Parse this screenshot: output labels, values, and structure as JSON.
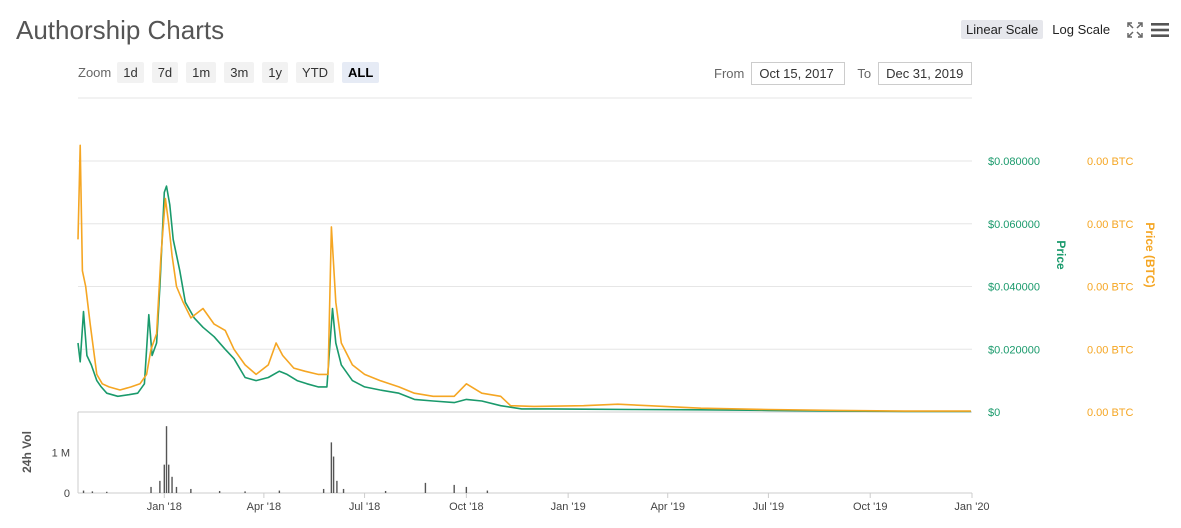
{
  "header": {
    "title": "Authorship Charts"
  },
  "scale": {
    "linear_label": "Linear Scale",
    "log_label": "Log Scale",
    "active": "linear"
  },
  "icons": {
    "fullscreen": "fullscreen-icon",
    "menu": "hamburger-menu-icon"
  },
  "zoom": {
    "label": "Zoom",
    "buttons": [
      "1d",
      "7d",
      "1m",
      "3m",
      "1y",
      "YTD",
      "ALL"
    ],
    "active": "ALL"
  },
  "range": {
    "from_label": "From",
    "from_value": "Oct 15, 2017",
    "to_label": "To",
    "to_value": "Dec 31, 2019"
  },
  "colors": {
    "price": "#1a9a6c",
    "btc": "#f5a623",
    "volume": "#555555",
    "grid": "#e6e6e6"
  },
  "chart_data": {
    "type": "line",
    "x_range": [
      "2017-10-15",
      "2019-12-31"
    ],
    "x_ticks": [
      {
        "date": "2018-01-01",
        "label": "Jan '18"
      },
      {
        "date": "2018-04-01",
        "label": "Apr '18"
      },
      {
        "date": "2018-07-01",
        "label": "Jul '18"
      },
      {
        "date": "2018-10-01",
        "label": "Oct '18"
      },
      {
        "date": "2019-01-01",
        "label": "Jan '19"
      },
      {
        "date": "2019-04-01",
        "label": "Apr '19"
      },
      {
        "date": "2019-07-01",
        "label": "Jul '19"
      },
      {
        "date": "2019-10-01",
        "label": "Oct '19"
      },
      {
        "date": "2020-01-01",
        "label": "Jan '20"
      }
    ],
    "y_left": {
      "label": "Price",
      "ylim": [
        0,
        0.08
      ],
      "ticks": [
        0,
        0.02,
        0.04,
        0.06,
        0.08
      ],
      "tick_labels": [
        "$0",
        "$0.020000",
        "$0.040000",
        "$0.060000",
        "$0.080000"
      ]
    },
    "y_right": {
      "label": "Price (BTC)",
      "tick_labels": [
        "0.00 BTC",
        "0.00 BTC",
        "0.00 BTC",
        "0.00 BTC",
        "0.00 BTC"
      ]
    },
    "volume_axis": {
      "label": "24h Vol",
      "ylim": [
        0,
        2000000
      ],
      "ticks": [
        0,
        1000000
      ],
      "tick_labels": [
        "0",
        "1 M"
      ]
    },
    "series": [
      {
        "name": "Price",
        "points": [
          [
            "2017-10-15",
            0.022
          ],
          [
            "2017-10-17",
            0.016
          ],
          [
            "2017-10-20",
            0.032
          ],
          [
            "2017-10-23",
            0.018
          ],
          [
            "2017-10-27",
            0.015
          ],
          [
            "2017-11-01",
            0.01
          ],
          [
            "2017-11-05",
            0.008
          ],
          [
            "2017-11-10",
            0.006
          ],
          [
            "2017-11-20",
            0.005
          ],
          [
            "2017-11-30",
            0.0055
          ],
          [
            "2017-12-08",
            0.006
          ],
          [
            "2017-12-14",
            0.009
          ],
          [
            "2017-12-18",
            0.031
          ],
          [
            "2017-12-21",
            0.018
          ],
          [
            "2017-12-25",
            0.022
          ],
          [
            "2017-12-28",
            0.04
          ],
          [
            "2018-01-01",
            0.07
          ],
          [
            "2018-01-03",
            0.072
          ],
          [
            "2018-01-06",
            0.066
          ],
          [
            "2018-01-09",
            0.055
          ],
          [
            "2018-01-12",
            0.05
          ],
          [
            "2018-01-15",
            0.045
          ],
          [
            "2018-01-20",
            0.035
          ],
          [
            "2018-01-28",
            0.03
          ],
          [
            "2018-02-05",
            0.027
          ],
          [
            "2018-02-15",
            0.024
          ],
          [
            "2018-02-25",
            0.02
          ],
          [
            "2018-03-05",
            0.017
          ],
          [
            "2018-03-15",
            0.011
          ],
          [
            "2018-03-25",
            0.01
          ],
          [
            "2018-04-05",
            0.011
          ],
          [
            "2018-04-15",
            0.013
          ],
          [
            "2018-04-22",
            0.012
          ],
          [
            "2018-05-01",
            0.01
          ],
          [
            "2018-05-10",
            0.009
          ],
          [
            "2018-05-20",
            0.008
          ],
          [
            "2018-05-28",
            0.008
          ],
          [
            "2018-06-02",
            0.033
          ],
          [
            "2018-06-05",
            0.022
          ],
          [
            "2018-06-10",
            0.015
          ],
          [
            "2018-06-20",
            0.01
          ],
          [
            "2018-07-01",
            0.008
          ],
          [
            "2018-07-15",
            0.007
          ],
          [
            "2018-08-01",
            0.006
          ],
          [
            "2018-08-15",
            0.004
          ],
          [
            "2018-09-01",
            0.0035
          ],
          [
            "2018-09-20",
            0.003
          ],
          [
            "2018-10-01",
            0.004
          ],
          [
            "2018-10-15",
            0.0035
          ],
          [
            "2018-11-01",
            0.002
          ],
          [
            "2018-11-20",
            0.001
          ],
          [
            "2018-12-15",
            0.001
          ],
          [
            "2019-01-15",
            0.0009
          ],
          [
            "2019-03-01",
            0.0008
          ],
          [
            "2019-05-01",
            0.0007
          ],
          [
            "2019-07-01",
            0.0005
          ],
          [
            "2019-09-01",
            0.0003
          ],
          [
            "2019-11-01",
            0.0002
          ],
          [
            "2019-12-31",
            0.0002
          ]
        ]
      },
      {
        "name": "Price (BTC)",
        "points": [
          [
            "2017-10-15",
            0.055
          ],
          [
            "2017-10-17",
            0.085
          ],
          [
            "2017-10-19",
            0.045
          ],
          [
            "2017-10-22",
            0.04
          ],
          [
            "2017-10-26",
            0.028
          ],
          [
            "2017-11-01",
            0.012
          ],
          [
            "2017-11-06",
            0.009
          ],
          [
            "2017-11-12",
            0.008
          ],
          [
            "2017-11-22",
            0.007
          ],
          [
            "2017-12-02",
            0.008
          ],
          [
            "2017-12-10",
            0.009
          ],
          [
            "2017-12-16",
            0.012
          ],
          [
            "2017-12-20",
            0.02
          ],
          [
            "2017-12-25",
            0.025
          ],
          [
            "2017-12-29",
            0.05
          ],
          [
            "2018-01-02",
            0.068
          ],
          [
            "2018-01-05",
            0.06
          ],
          [
            "2018-01-08",
            0.05
          ],
          [
            "2018-01-12",
            0.04
          ],
          [
            "2018-01-18",
            0.035
          ],
          [
            "2018-01-25",
            0.03
          ],
          [
            "2018-02-05",
            0.033
          ],
          [
            "2018-02-15",
            0.028
          ],
          [
            "2018-02-25",
            0.026
          ],
          [
            "2018-03-05",
            0.02
          ],
          [
            "2018-03-15",
            0.015
          ],
          [
            "2018-03-25",
            0.012
          ],
          [
            "2018-04-05",
            0.015
          ],
          [
            "2018-04-12",
            0.022
          ],
          [
            "2018-04-18",
            0.018
          ],
          [
            "2018-04-28",
            0.014
          ],
          [
            "2018-05-08",
            0.013
          ],
          [
            "2018-05-20",
            0.012
          ],
          [
            "2018-05-29",
            0.012
          ],
          [
            "2018-06-01",
            0.059
          ],
          [
            "2018-06-05",
            0.035
          ],
          [
            "2018-06-10",
            0.022
          ],
          [
            "2018-06-20",
            0.015
          ],
          [
            "2018-07-01",
            0.012
          ],
          [
            "2018-07-15",
            0.01
          ],
          [
            "2018-08-01",
            0.008
          ],
          [
            "2018-08-15",
            0.006
          ],
          [
            "2018-09-01",
            0.005
          ],
          [
            "2018-09-20",
            0.005
          ],
          [
            "2018-10-01",
            0.009
          ],
          [
            "2018-10-15",
            0.006
          ],
          [
            "2018-11-01",
            0.005
          ],
          [
            "2018-11-10",
            0.002
          ],
          [
            "2018-12-01",
            0.0018
          ],
          [
            "2019-01-15",
            0.002
          ],
          [
            "2019-02-15",
            0.0025
          ],
          [
            "2019-03-15",
            0.002
          ],
          [
            "2019-05-01",
            0.0012
          ],
          [
            "2019-07-01",
            0.0008
          ],
          [
            "2019-09-01",
            0.0005
          ],
          [
            "2019-11-01",
            0.0003
          ],
          [
            "2019-12-31",
            0.0003
          ]
        ]
      },
      {
        "name": "24h Vol",
        "points": [
          [
            "2017-10-20",
            60000
          ],
          [
            "2017-10-28",
            40000
          ],
          [
            "2017-11-10",
            30000
          ],
          [
            "2017-12-20",
            150000
          ],
          [
            "2017-12-28",
            300000
          ],
          [
            "2018-01-01",
            700000
          ],
          [
            "2018-01-03",
            1650000
          ],
          [
            "2018-01-05",
            700000
          ],
          [
            "2018-01-08",
            400000
          ],
          [
            "2018-01-12",
            150000
          ],
          [
            "2018-01-25",
            100000
          ],
          [
            "2018-02-20",
            50000
          ],
          [
            "2018-03-15",
            40000
          ],
          [
            "2018-04-15",
            60000
          ],
          [
            "2018-05-25",
            100000
          ],
          [
            "2018-06-01",
            1250000
          ],
          [
            "2018-06-03",
            900000
          ],
          [
            "2018-06-06",
            300000
          ],
          [
            "2018-06-12",
            100000
          ],
          [
            "2018-07-20",
            50000
          ],
          [
            "2018-08-25",
            250000
          ],
          [
            "2018-09-20",
            200000
          ],
          [
            "2018-10-01",
            150000
          ],
          [
            "2018-10-20",
            60000
          ]
        ]
      }
    ]
  }
}
